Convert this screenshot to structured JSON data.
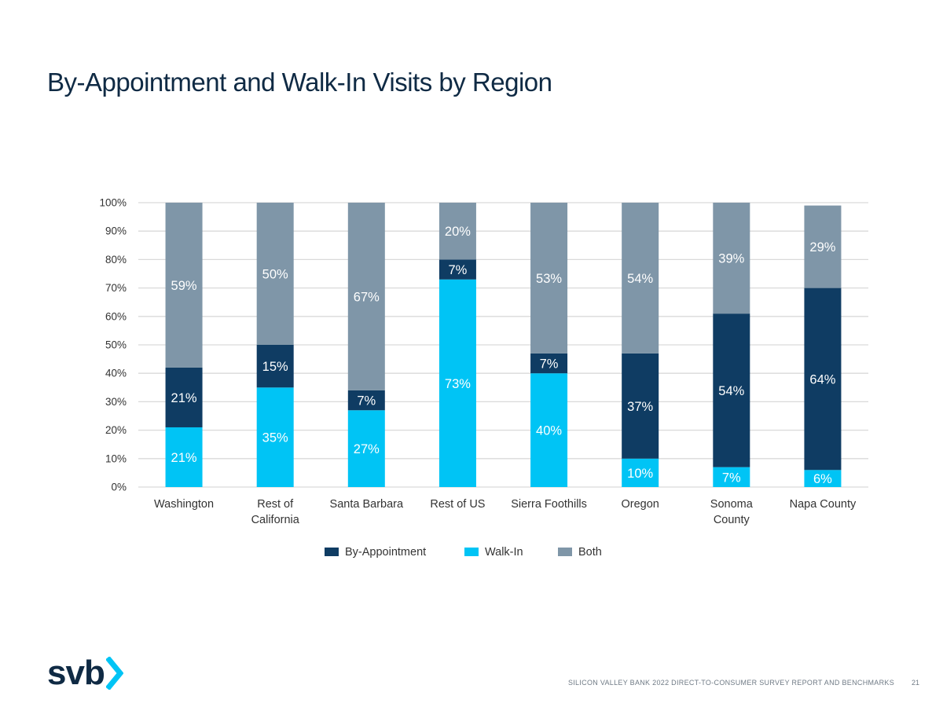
{
  "page": {
    "title": "By-Appointment and Walk-In Visits by Region",
    "footer": "SILICON VALLEY BANK 2022 DIRECT-TO-CONSUMER SURVEY REPORT AND BENCHMARKS",
    "page_number": "21",
    "logo_text": "svb"
  },
  "colors": {
    "by_appointment": "#0f3c63",
    "walk_in": "#00c4f5",
    "both": "#7f96a8",
    "title": "#0f2a44",
    "logo_chevron": "#00c4f5"
  },
  "chart_data": {
    "type": "bar",
    "stacked": true,
    "title": "",
    "xlabel": "",
    "ylabel": "",
    "ylim": [
      0,
      100
    ],
    "yticks": [
      "0%",
      "10%",
      "20%",
      "30%",
      "40%",
      "50%",
      "60%",
      "70%",
      "80%",
      "90%",
      "100%"
    ],
    "categories": [
      [
        "Washington"
      ],
      [
        "Rest of",
        "California"
      ],
      [
        "Santa Barbara"
      ],
      [
        "Rest of US"
      ],
      [
        "Sierra Foothills"
      ],
      [
        "Oregon"
      ],
      [
        "Sonoma",
        "County"
      ],
      [
        "Napa County"
      ]
    ],
    "series": [
      {
        "name": "Walk-In",
        "color_key": "walk_in",
        "values": [
          21,
          35,
          27,
          73,
          40,
          10,
          7,
          6
        ],
        "labels": [
          "21%",
          "35%",
          "27%",
          "73%",
          "40%",
          "10%",
          "7%",
          "6%"
        ]
      },
      {
        "name": "By-Appointment",
        "color_key": "by_appointment",
        "values": [
          21,
          15,
          7,
          7,
          7,
          37,
          54,
          64
        ],
        "labels": [
          "21%",
          "15%",
          "7%",
          "7%",
          "7%",
          "37%",
          "54%",
          "64%"
        ]
      },
      {
        "name": "Both",
        "color_key": "both",
        "values": [
          59,
          50,
          67,
          20,
          53,
          54,
          39,
          29
        ],
        "labels": [
          "59%",
          "50%",
          "67%",
          "20%",
          "53%",
          "54%",
          "39%",
          "29%"
        ]
      }
    ],
    "legend": {
      "position": "bottom",
      "items": [
        {
          "name": "By-Appointment",
          "color_key": "by_appointment"
        },
        {
          "name": "Walk-In",
          "color_key": "walk_in"
        },
        {
          "name": "Both",
          "color_key": "both"
        }
      ]
    }
  }
}
